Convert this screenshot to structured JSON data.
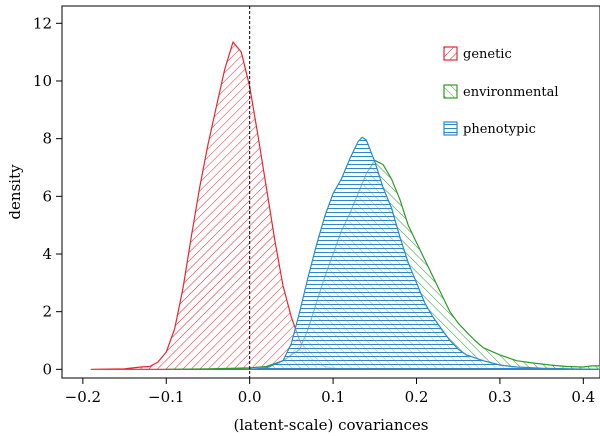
{
  "chart_data": {
    "type": "area",
    "xlabel": "(latent-scale) covariances",
    "ylabel": "density",
    "xlim": [
      -0.225,
      0.42
    ],
    "ylim": [
      -0.3,
      12.6
    ],
    "x_ticks": [
      -0.2,
      -0.1,
      0.0,
      0.1,
      0.2,
      0.3,
      0.4
    ],
    "x_tick_labels": [
      "−0.2",
      "−0.1",
      "0.0",
      "0.1",
      "0.2",
      "0.3",
      "0.4"
    ],
    "y_ticks": [
      0,
      2,
      4,
      6,
      8,
      10,
      12
    ],
    "y_tick_labels": [
      "0",
      "2",
      "4",
      "6",
      "8",
      "10",
      "12"
    ],
    "reference_line_x": 0,
    "legend_position": "top-right",
    "series": [
      {
        "name": "genetic",
        "color": "#e8262f",
        "hatch": "diagonal-down",
        "points": [
          [
            -0.19,
            0
          ],
          [
            -0.15,
            0.02
          ],
          [
            -0.13,
            0.08
          ],
          [
            -0.12,
            0.1
          ],
          [
            -0.11,
            0.25
          ],
          [
            -0.1,
            0.6
          ],
          [
            -0.09,
            1.4
          ],
          [
            -0.08,
            2.8
          ],
          [
            -0.07,
            4.6
          ],
          [
            -0.06,
            6.3
          ],
          [
            -0.05,
            7.8
          ],
          [
            -0.04,
            9.1
          ],
          [
            -0.03,
            10.4
          ],
          [
            -0.02,
            11.35
          ],
          [
            -0.01,
            11.0
          ],
          [
            0.0,
            9.8
          ],
          [
            0.01,
            8.1
          ],
          [
            0.02,
            6.3
          ],
          [
            0.03,
            4.5
          ],
          [
            0.04,
            2.9
          ],
          [
            0.05,
            1.8
          ],
          [
            0.06,
            1.0
          ],
          [
            0.07,
            0.5
          ],
          [
            0.08,
            0.22
          ],
          [
            0.09,
            0.1
          ],
          [
            0.1,
            0.04
          ],
          [
            0.12,
            0.01
          ],
          [
            0.15,
            0
          ]
        ]
      },
      {
        "name": "environmental",
        "color": "#2e9a2a",
        "hatch": "diagonal-up",
        "points": [
          [
            -0.1,
            0
          ],
          [
            -0.05,
            0.02
          ],
          [
            0.0,
            0.05
          ],
          [
            0.02,
            0.1
          ],
          [
            0.04,
            0.3
          ],
          [
            0.06,
            0.7
          ],
          [
            0.07,
            1.4
          ],
          [
            0.08,
            2.3
          ],
          [
            0.09,
            3.2
          ],
          [
            0.1,
            4.0
          ],
          [
            0.11,
            4.8
          ],
          [
            0.12,
            5.4
          ],
          [
            0.13,
            6.1
          ],
          [
            0.14,
            6.8
          ],
          [
            0.15,
            7.25
          ],
          [
            0.16,
            7.1
          ],
          [
            0.17,
            6.6
          ],
          [
            0.18,
            5.9
          ],
          [
            0.19,
            5.0
          ],
          [
            0.2,
            4.4
          ],
          [
            0.21,
            3.8
          ],
          [
            0.22,
            3.2
          ],
          [
            0.23,
            2.6
          ],
          [
            0.24,
            2.0
          ],
          [
            0.25,
            1.6
          ],
          [
            0.26,
            1.3
          ],
          [
            0.27,
            1.0
          ],
          [
            0.28,
            0.75
          ],
          [
            0.3,
            0.5
          ],
          [
            0.32,
            0.3
          ],
          [
            0.34,
            0.22
          ],
          [
            0.36,
            0.15
          ],
          [
            0.38,
            0.1
          ],
          [
            0.4,
            0.08
          ],
          [
            0.41,
            0.12
          ],
          [
            0.42,
            0.12
          ]
        ]
      },
      {
        "name": "phenotypic",
        "color": "#2f86c8",
        "hatch": "horizontal",
        "points": [
          [
            0.0,
            0
          ],
          [
            0.02,
            0.05
          ],
          [
            0.04,
            0.3
          ],
          [
            0.05,
            0.9
          ],
          [
            0.06,
            2.0
          ],
          [
            0.07,
            3.2
          ],
          [
            0.08,
            4.3
          ],
          [
            0.09,
            5.3
          ],
          [
            0.1,
            6.1
          ],
          [
            0.11,
            6.6
          ],
          [
            0.12,
            7.3
          ],
          [
            0.13,
            7.9
          ],
          [
            0.135,
            8.05
          ],
          [
            0.14,
            7.95
          ],
          [
            0.15,
            7.2
          ],
          [
            0.16,
            6.3
          ],
          [
            0.17,
            5.6
          ],
          [
            0.18,
            4.6
          ],
          [
            0.19,
            3.7
          ],
          [
            0.2,
            3.0
          ],
          [
            0.21,
            2.3
          ],
          [
            0.22,
            1.8
          ],
          [
            0.23,
            1.4
          ],
          [
            0.24,
            1.0
          ],
          [
            0.25,
            0.7
          ],
          [
            0.26,
            0.5
          ],
          [
            0.28,
            0.3
          ],
          [
            0.3,
            0.15
          ],
          [
            0.32,
            0.08
          ],
          [
            0.35,
            0.04
          ],
          [
            0.4,
            0.01
          ],
          [
            0.42,
            0
          ]
        ]
      }
    ]
  }
}
